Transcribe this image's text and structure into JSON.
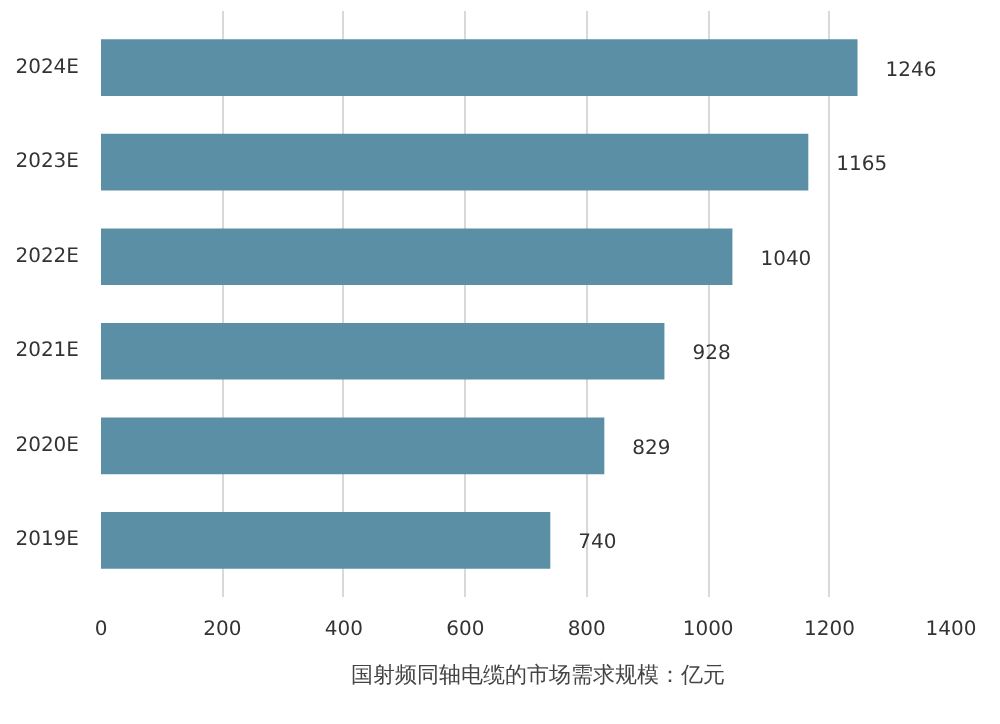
{
  "chart_data": {
    "type": "bar",
    "orientation": "horizontal",
    "categories": [
      "2024E",
      "2023E",
      "2022E",
      "2021E",
      "2020E",
      "2019E"
    ],
    "series": [
      {
        "name": "国射频同轴电缆的市场需求规模：亿元",
        "color": "#5b8fa6",
        "values": [
          1246,
          1165,
          1040,
          928,
          829,
          740
        ]
      }
    ],
    "xlim": [
      0,
      1400
    ],
    "xticks": [
      0,
      200,
      400,
      600,
      800,
      1000,
      1200,
      1400
    ],
    "grid": "x",
    "legend": "bottom",
    "data_labels": true
  }
}
